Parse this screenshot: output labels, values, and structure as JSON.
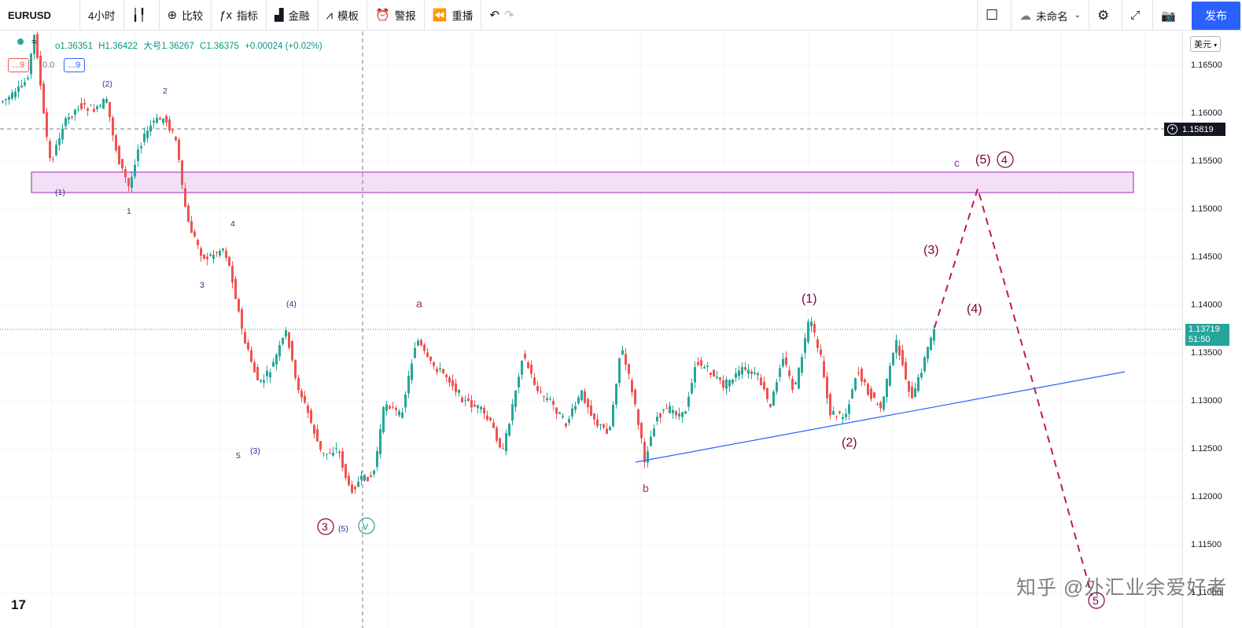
{
  "toolbar": {
    "symbol": "EURUSD",
    "interval": "4小时",
    "compare": "比较",
    "indicators": "指标",
    "finance": "金融",
    "templates": "模板",
    "alert": "警报",
    "replay": "重播",
    "layout_name": "未命名",
    "publish": "发布"
  },
  "legend": {
    "open": "o1.36351",
    "high": "H1.36422",
    "size": "大号1.36267",
    "close": "C1.36375",
    "change": "+0.00024 (+0.02%)",
    "badge_left": "...9",
    "badge_mid": "0.0",
    "badge_right": "...9"
  },
  "price_axis": {
    "currency": "美元",
    "ticks": [
      "1.16500",
      "1.16000",
      "1.15500",
      "1.15000",
      "1.14500",
      "1.14000",
      "1.13500",
      "1.13000",
      "1.12500",
      "1.12000",
      "1.11500",
      "1.11000"
    ],
    "crosshair_price": "1.15819",
    "current_price": "1.13719",
    "countdown": "51:50"
  },
  "wave_labels": {
    "sub1": "(1)",
    "sub2": "(2)",
    "sub3": "(3)",
    "sub4": "(4)",
    "sub5": "(5)",
    "m1": "1",
    "m2": "2",
    "m3": "3",
    "m4": "4",
    "m5": "5",
    "a": "a",
    "b": "b",
    "c": "c",
    "circ3": "3",
    "circ4": "4",
    "circ5": "5",
    "v": "v",
    "r1": "(1)",
    "r2": "(2)",
    "r3": "(3)",
    "r4": "(4)",
    "r5": "(5)"
  },
  "watermark": "知乎 @外汇业余爱好者",
  "logo": "17",
  "colors": {
    "up": "#26a69a",
    "down": "#ef5350",
    "zone": "#f3e0f7",
    "zone_border": "#9c27b0",
    "wave": "#800040",
    "trend": "#2962ff",
    "projection": "#c2185b"
  }
}
